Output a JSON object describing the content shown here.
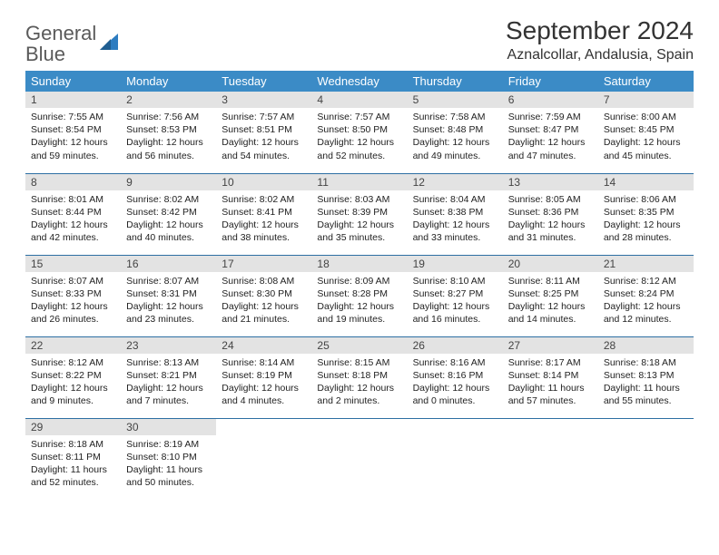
{
  "brand": {
    "name_gray": "General",
    "name_blue": "Blue"
  },
  "title": "September 2024",
  "location": "Aznalcollar, Andalusia, Spain",
  "colors": {
    "header_bg": "#3b8bc6",
    "header_fg": "#ffffff",
    "daynum_bg": "#e3e3e3",
    "row_border": "#2d6fa3",
    "logo_gray": "#5a5a5a",
    "logo_blue": "#2d7cc0"
  },
  "weekdays": [
    "Sunday",
    "Monday",
    "Tuesday",
    "Wednesday",
    "Thursday",
    "Friday",
    "Saturday"
  ],
  "days": [
    {
      "n": 1,
      "sunrise": "7:55 AM",
      "sunset": "8:54 PM",
      "day_h": 12,
      "day_m": 59
    },
    {
      "n": 2,
      "sunrise": "7:56 AM",
      "sunset": "8:53 PM",
      "day_h": 12,
      "day_m": 56
    },
    {
      "n": 3,
      "sunrise": "7:57 AM",
      "sunset": "8:51 PM",
      "day_h": 12,
      "day_m": 54
    },
    {
      "n": 4,
      "sunrise": "7:57 AM",
      "sunset": "8:50 PM",
      "day_h": 12,
      "day_m": 52
    },
    {
      "n": 5,
      "sunrise": "7:58 AM",
      "sunset": "8:48 PM",
      "day_h": 12,
      "day_m": 49
    },
    {
      "n": 6,
      "sunrise": "7:59 AM",
      "sunset": "8:47 PM",
      "day_h": 12,
      "day_m": 47
    },
    {
      "n": 7,
      "sunrise": "8:00 AM",
      "sunset": "8:45 PM",
      "day_h": 12,
      "day_m": 45
    },
    {
      "n": 8,
      "sunrise": "8:01 AM",
      "sunset": "8:44 PM",
      "day_h": 12,
      "day_m": 42
    },
    {
      "n": 9,
      "sunrise": "8:02 AM",
      "sunset": "8:42 PM",
      "day_h": 12,
      "day_m": 40
    },
    {
      "n": 10,
      "sunrise": "8:02 AM",
      "sunset": "8:41 PM",
      "day_h": 12,
      "day_m": 38
    },
    {
      "n": 11,
      "sunrise": "8:03 AM",
      "sunset": "8:39 PM",
      "day_h": 12,
      "day_m": 35
    },
    {
      "n": 12,
      "sunrise": "8:04 AM",
      "sunset": "8:38 PM",
      "day_h": 12,
      "day_m": 33
    },
    {
      "n": 13,
      "sunrise": "8:05 AM",
      "sunset": "8:36 PM",
      "day_h": 12,
      "day_m": 31
    },
    {
      "n": 14,
      "sunrise": "8:06 AM",
      "sunset": "8:35 PM",
      "day_h": 12,
      "day_m": 28
    },
    {
      "n": 15,
      "sunrise": "8:07 AM",
      "sunset": "8:33 PM",
      "day_h": 12,
      "day_m": 26
    },
    {
      "n": 16,
      "sunrise": "8:07 AM",
      "sunset": "8:31 PM",
      "day_h": 12,
      "day_m": 23
    },
    {
      "n": 17,
      "sunrise": "8:08 AM",
      "sunset": "8:30 PM",
      "day_h": 12,
      "day_m": 21
    },
    {
      "n": 18,
      "sunrise": "8:09 AM",
      "sunset": "8:28 PM",
      "day_h": 12,
      "day_m": 19
    },
    {
      "n": 19,
      "sunrise": "8:10 AM",
      "sunset": "8:27 PM",
      "day_h": 12,
      "day_m": 16
    },
    {
      "n": 20,
      "sunrise": "8:11 AM",
      "sunset": "8:25 PM",
      "day_h": 12,
      "day_m": 14
    },
    {
      "n": 21,
      "sunrise": "8:12 AM",
      "sunset": "8:24 PM",
      "day_h": 12,
      "day_m": 12
    },
    {
      "n": 22,
      "sunrise": "8:12 AM",
      "sunset": "8:22 PM",
      "day_h": 12,
      "day_m": 9
    },
    {
      "n": 23,
      "sunrise": "8:13 AM",
      "sunset": "8:21 PM",
      "day_h": 12,
      "day_m": 7
    },
    {
      "n": 24,
      "sunrise": "8:14 AM",
      "sunset": "8:19 PM",
      "day_h": 12,
      "day_m": 4
    },
    {
      "n": 25,
      "sunrise": "8:15 AM",
      "sunset": "8:18 PM",
      "day_h": 12,
      "day_m": 2
    },
    {
      "n": 26,
      "sunrise": "8:16 AM",
      "sunset": "8:16 PM",
      "day_h": 12,
      "day_m": 0
    },
    {
      "n": 27,
      "sunrise": "8:17 AM",
      "sunset": "8:14 PM",
      "day_h": 11,
      "day_m": 57
    },
    {
      "n": 28,
      "sunrise": "8:18 AM",
      "sunset": "8:13 PM",
      "day_h": 11,
      "day_m": 55
    },
    {
      "n": 29,
      "sunrise": "8:18 AM",
      "sunset": "8:11 PM",
      "day_h": 11,
      "day_m": 52
    },
    {
      "n": 30,
      "sunrise": "8:19 AM",
      "sunset": "8:10 PM",
      "day_h": 11,
      "day_m": 50
    }
  ],
  "labels": {
    "sunrise": "Sunrise:",
    "sunset": "Sunset:",
    "daylight": "Daylight:",
    "hours": "hours",
    "and": "and",
    "minutes": "minutes."
  },
  "layout": {
    "first_weekday_index": 0,
    "rows": 5,
    "cols": 7
  }
}
